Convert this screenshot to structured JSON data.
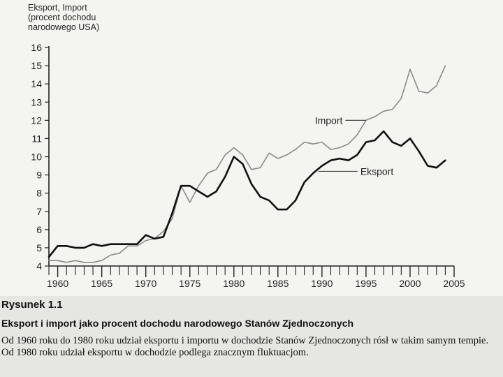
{
  "chart_data": {
    "type": "line",
    "ylabel_lines": [
      "Eksport, Import",
      "(procent dochodu",
      "narodowego USA)"
    ],
    "ylim": [
      4,
      16
    ],
    "y_ticks": [
      "4",
      "5",
      "6",
      "7",
      "8",
      "9",
      "10",
      "11",
      "12",
      "13",
      "14",
      "15",
      "16"
    ],
    "xlim": [
      1959,
      2005
    ],
    "x_ticks": [
      "1960",
      "1965",
      "1970",
      "1975",
      "1980",
      "1985",
      "1990",
      "1995",
      "2000",
      "2005"
    ],
    "series": [
      {
        "name": "Import",
        "color": "#8a8a8a",
        "x": [
          1959,
          1960,
          1961,
          1962,
          1963,
          1964,
          1965,
          1966,
          1967,
          1968,
          1969,
          1970,
          1971,
          1972,
          1973,
          1974,
          1975,
          1976,
          1977,
          1978,
          1979,
          1980,
          1981,
          1982,
          1983,
          1984,
          1985,
          1986,
          1987,
          1988,
          1989,
          1990,
          1991,
          1992,
          1993,
          1994,
          1995,
          1996,
          1997,
          1998,
          1999,
          2000,
          2001,
          2002,
          2003,
          2004
        ],
        "values": [
          4.3,
          4.3,
          4.2,
          4.3,
          4.2,
          4.2,
          4.3,
          4.6,
          4.7,
          5.1,
          5.1,
          5.4,
          5.5,
          5.9,
          6.6,
          8.4,
          7.5,
          8.4,
          9.1,
          9.3,
          10.1,
          10.5,
          10.1,
          9.3,
          9.4,
          10.2,
          9.9,
          10.1,
          10.4,
          10.8,
          10.7,
          10.8,
          10.4,
          10.5,
          10.7,
          11.2,
          12.0,
          12.2,
          12.5,
          12.6,
          13.2,
          14.8,
          13.6,
          13.5,
          13.9,
          15.0
        ]
      },
      {
        "name": "Eksport",
        "color": "#111111",
        "x": [
          1959,
          1960,
          1961,
          1962,
          1963,
          1964,
          1965,
          1966,
          1967,
          1968,
          1969,
          1970,
          1971,
          1972,
          1973,
          1974,
          1975,
          1976,
          1977,
          1978,
          1979,
          1980,
          1981,
          1982,
          1983,
          1984,
          1985,
          1986,
          1987,
          1988,
          1989,
          1990,
          1991,
          1992,
          1993,
          1994,
          1995,
          1996,
          1997,
          1998,
          1999,
          2000,
          2001,
          2002,
          2003,
          2004
        ],
        "values": [
          4.5,
          5.1,
          5.1,
          5.0,
          5.0,
          5.2,
          5.1,
          5.2,
          5.2,
          5.2,
          5.2,
          5.7,
          5.5,
          5.6,
          6.9,
          8.4,
          8.4,
          8.1,
          7.8,
          8.1,
          8.9,
          10.0,
          9.6,
          8.5,
          7.8,
          7.6,
          7.1,
          7.1,
          7.6,
          8.6,
          9.1,
          9.5,
          9.8,
          9.9,
          9.8,
          10.1,
          10.8,
          10.9,
          11.4,
          10.8,
          10.6,
          11.0,
          10.3,
          9.5,
          9.4,
          9.8
        ]
      }
    ],
    "annotations": [
      {
        "text": "Import",
        "x": 1992.5,
        "y": 12.0,
        "target": [
          1995,
          12.0
        ]
      },
      {
        "text": "Eksport",
        "x": 1994.2,
        "y": 9.2,
        "target": [
          1989.6,
          9.2
        ]
      }
    ]
  },
  "caption": {
    "number": "Rysunek 1.1",
    "title": "Eksport i import jako procent dochodu narodowego Stanów Zjednoczonych",
    "description": "Od 1960 roku do 1980 roku udział eksportu i importu w dochodzie Stanów Zjednoczonych rósł w takim samym tempie. Od 1980 roku udział eksportu w dochodzie podlega znacznym fluktuacjom."
  }
}
